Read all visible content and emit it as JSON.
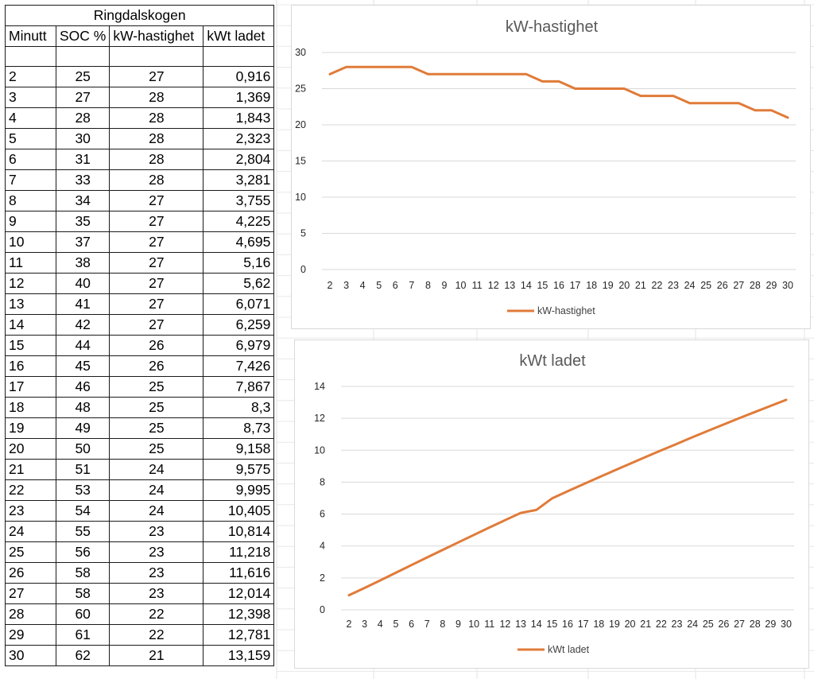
{
  "sheet": {
    "title": "Ringdalskogen",
    "headers": [
      "Minutt",
      "SOC %",
      "kW-hastighet",
      "kWt ladet"
    ],
    "rows": [
      [
        "2",
        "25",
        "27",
        "0,916"
      ],
      [
        "3",
        "27",
        "28",
        "1,369"
      ],
      [
        "4",
        "28",
        "28",
        "1,843"
      ],
      [
        "5",
        "30",
        "28",
        "2,323"
      ],
      [
        "6",
        "31",
        "28",
        "2,804"
      ],
      [
        "7",
        "33",
        "28",
        "3,281"
      ],
      [
        "8",
        "34",
        "27",
        "3,755"
      ],
      [
        "9",
        "35",
        "27",
        "4,225"
      ],
      [
        "10",
        "37",
        "27",
        "4,695"
      ],
      [
        "11",
        "38",
        "27",
        "5,16"
      ],
      [
        "12",
        "40",
        "27",
        "5,62"
      ],
      [
        "13",
        "41",
        "27",
        "6,071"
      ],
      [
        "14",
        "42",
        "27",
        "6,259"
      ],
      [
        "15",
        "44",
        "26",
        "6,979"
      ],
      [
        "16",
        "45",
        "26",
        "7,426"
      ],
      [
        "17",
        "46",
        "25",
        "7,867"
      ],
      [
        "18",
        "48",
        "25",
        "8,3"
      ],
      [
        "19",
        "49",
        "25",
        "8,73"
      ],
      [
        "20",
        "50",
        "25",
        "9,158"
      ],
      [
        "21",
        "51",
        "24",
        "9,575"
      ],
      [
        "22",
        "53",
        "24",
        "9,995"
      ],
      [
        "23",
        "54",
        "24",
        "10,405"
      ],
      [
        "24",
        "55",
        "23",
        "10,814"
      ],
      [
        "25",
        "56",
        "23",
        "11,218"
      ],
      [
        "26",
        "58",
        "23",
        "11,616"
      ],
      [
        "27",
        "58",
        "23",
        "12,014"
      ],
      [
        "28",
        "60",
        "22",
        "12,398"
      ],
      [
        "29",
        "61",
        "22",
        "12,781"
      ],
      [
        "30",
        "62",
        "21",
        "13,159"
      ]
    ]
  },
  "line_color": "#e07b39",
  "chart_data": [
    {
      "type": "line",
      "title": "kW-hastighet",
      "x": [
        2,
        3,
        4,
        5,
        6,
        7,
        8,
        9,
        10,
        11,
        12,
        13,
        14,
        15,
        16,
        17,
        18,
        19,
        20,
        21,
        22,
        23,
        24,
        25,
        26,
        27,
        28,
        29,
        30
      ],
      "series": [
        {
          "name": "kW-hastighet",
          "values": [
            27,
            28,
            28,
            28,
            28,
            28,
            27,
            27,
            27,
            27,
            27,
            27,
            27,
            26,
            26,
            25,
            25,
            25,
            25,
            24,
            24,
            24,
            23,
            23,
            23,
            23,
            22,
            22,
            21
          ]
        }
      ],
      "ylim": [
        0,
        30
      ],
      "yticks": [
        0,
        5,
        10,
        15,
        20,
        25,
        30
      ],
      "grid": true,
      "legend": "bottom"
    },
    {
      "type": "line",
      "title": "kWt ladet",
      "x": [
        2,
        3,
        4,
        5,
        6,
        7,
        8,
        9,
        10,
        11,
        12,
        13,
        14,
        15,
        16,
        17,
        18,
        19,
        20,
        21,
        22,
        23,
        24,
        25,
        26,
        27,
        28,
        29,
        30
      ],
      "series": [
        {
          "name": "kWt ladet",
          "values": [
            0.916,
            1.369,
            1.843,
            2.323,
            2.804,
            3.281,
            3.755,
            4.225,
            4.695,
            5.16,
            5.62,
            6.071,
            6.259,
            6.979,
            7.426,
            7.867,
            8.3,
            8.73,
            9.158,
            9.575,
            9.995,
            10.405,
            10.814,
            11.218,
            11.616,
            12.014,
            12.398,
            12.781,
            13.159
          ]
        }
      ],
      "ylim": [
        0,
        14
      ],
      "yticks": [
        0,
        2,
        4,
        6,
        8,
        10,
        12,
        14
      ],
      "grid": true,
      "legend": "bottom"
    }
  ]
}
